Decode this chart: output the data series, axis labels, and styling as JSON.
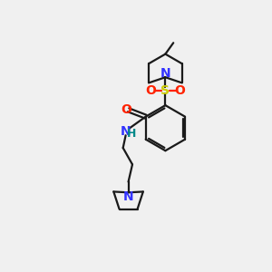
{
  "bg_color": "#f0f0f0",
  "bond_color": "#1a1a1a",
  "N_color": "#3333ff",
  "O_color": "#ff2200",
  "S_color": "#cccc00",
  "H_color": "#008888",
  "line_width": 1.6,
  "fig_size": [
    3.0,
    3.0
  ],
  "dpi": 100,
  "xlim": [
    0,
    10
  ],
  "ylim": [
    0,
    10
  ]
}
